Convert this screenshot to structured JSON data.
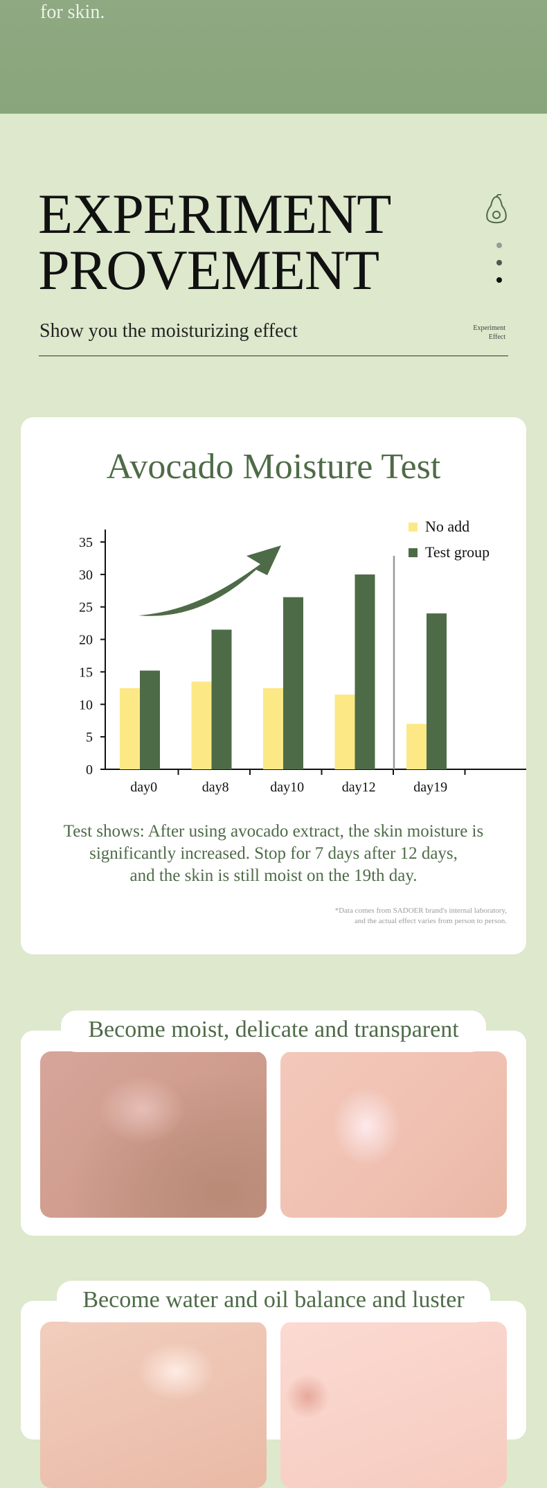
{
  "top_band": {
    "tagline": "for skin."
  },
  "hero": {
    "title_line1": "EXPERIMENT",
    "title_line2": "PROVEMENT",
    "subtitle": "Show you the moisturizing effect",
    "meta_line1": "Experiment",
    "meta_line2": "Effect"
  },
  "colors": {
    "background": "#dde8cc",
    "top_band": "#8aa67d",
    "dark_green": "#4e6b47",
    "yellow": "#fde886",
    "card": "#ffffff"
  },
  "icons": {
    "avocado": "avocado-icon",
    "trend": "trend-arrow-icon"
  },
  "chart_card": {
    "title": "Avocado Moisture Test",
    "result_line1": "Test shows: After using avocado extract, the skin moisture is",
    "result_line2": "significantly increased. Stop for 7 days after 12 days,",
    "result_line3": "and the skin is still moist on the 19th day.",
    "note_line1": "*Data comes from SADOER brand's internal laboratory,",
    "note_line2": "and the actual effect varies from person to person."
  },
  "chart_data": {
    "type": "bar",
    "categories": [
      "day0",
      "day8",
      "day10",
      "day12",
      "day19"
    ],
    "series": [
      {
        "name": "No add",
        "color": "#fde886",
        "values": [
          12.5,
          13.5,
          12.5,
          11.5,
          7
        ]
      },
      {
        "name": "Test group",
        "color": "#4e6b47",
        "values": [
          15.2,
          21.5,
          26.5,
          30,
          24
        ]
      }
    ],
    "yticks": [
      "0",
      "5",
      "10",
      "15",
      "20",
      "25",
      "30",
      "35"
    ],
    "ylim": [
      0,
      37
    ],
    "legend_position": "top-right",
    "grid": false
  },
  "section_moist": {
    "title": "Become moist, delicate and transparent"
  },
  "section_balance": {
    "title": "Become water and oil balance and luster"
  }
}
